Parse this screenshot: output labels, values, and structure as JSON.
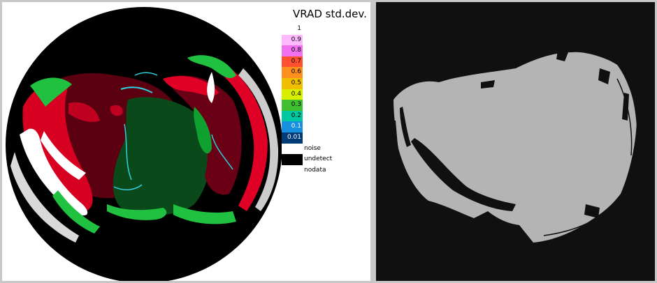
{
  "legend": {
    "title": "VRAD std.dev.",
    "scale": [
      {
        "label": "1",
        "color": "#ffffff"
      },
      {
        "label": "0.9",
        "color": "#ffbaff"
      },
      {
        "label": "0.8",
        "color": "#f070f0"
      },
      {
        "label": "0.7",
        "color": "#ff5030"
      },
      {
        "label": "0.6",
        "color": "#ff9020"
      },
      {
        "label": "0.5",
        "color": "#f0c000"
      },
      {
        "label": "0.4",
        "color": "#d8f000"
      },
      {
        "label": "0.3",
        "color": "#40c030"
      },
      {
        "label": "0.2",
        "color": "#00c8a0"
      },
      {
        "label": "0.1",
        "color": "#1890e0"
      },
      {
        "label": "0.01",
        "color": "#003c78"
      }
    ],
    "categories": [
      {
        "label": "noise",
        "color": "#ffffff"
      },
      {
        "label": "undetect",
        "color": "#000000"
      },
      {
        "label": "nodata",
        "color": "#ffffff"
      }
    ]
  },
  "colors": {
    "radar_background": "#000000",
    "mask_background": "#101010",
    "mask_fill": "#b4b4b4",
    "echo_red": "#c00020",
    "echo_darkred": "#5a0010",
    "echo_green": "#10a030",
    "echo_darkgreen": "#0a4a1a",
    "echo_white": "#ffffff",
    "echo_cyan": "#30d0e0"
  }
}
